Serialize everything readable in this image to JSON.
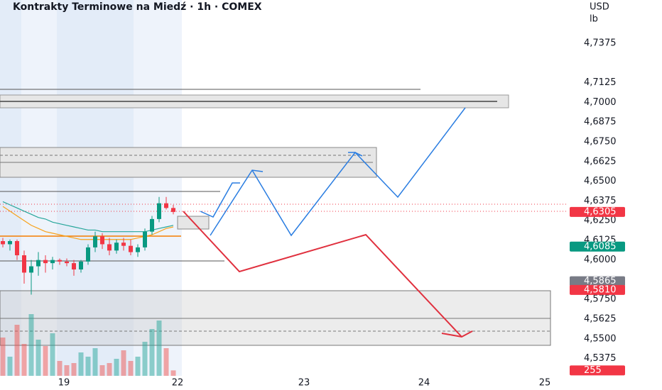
{
  "chart_data": {
    "type": "candlestick",
    "title": "Kontrakty Terminowe na Miedź · 1h · COMEX",
    "currency": "USD",
    "unit": "lb",
    "x_labels": [
      "19",
      "22",
      "23",
      "24",
      "25"
    ],
    "ylim": [
      4.522,
      4.765
    ],
    "yticks": [
      {
        "value": 4.7375,
        "label": "4,7375"
      },
      {
        "value": 4.7125,
        "label": "4,7125"
      },
      {
        "value": 4.7,
        "label": "4,7000"
      },
      {
        "value": 4.6875,
        "label": "4,6875"
      },
      {
        "value": 4.675,
        "label": "4,6750"
      },
      {
        "value": 4.6625,
        "label": "4,6625"
      },
      {
        "value": 4.65,
        "label": "4,6500"
      },
      {
        "value": 4.6375,
        "label": "4,6375"
      },
      {
        "value": 4.625,
        "label": "4,6250"
      },
      {
        "value": 4.6125,
        "label": "4,6125"
      },
      {
        "value": 4.6,
        "label": "4,6000"
      },
      {
        "value": 4.575,
        "label": "4,5750"
      },
      {
        "value": 4.5625,
        "label": "4,5625"
      },
      {
        "value": 4.55,
        "label": "4,5500"
      },
      {
        "value": 4.5375,
        "label": "4,5375"
      }
    ],
    "price_labels": [
      {
        "value": 4.6305,
        "label": "4,6305",
        "color": "#f23645"
      },
      {
        "value": 4.6085,
        "label": "4,6085",
        "color": "#089981"
      },
      {
        "value": 4.5865,
        "label": "4,5865",
        "color": "#787b86"
      },
      {
        "value": 4.581,
        "label": "4,5810",
        "color": "#f23645"
      }
    ],
    "up_color": "#089981",
    "down_color": "#f23645",
    "candles": [
      {
        "o": 4.612,
        "h": 4.614,
        "l": 4.608,
        "c": 4.61
      },
      {
        "o": 4.61,
        "h": 4.613,
        "l": 4.606,
        "c": 4.612
      },
      {
        "o": 4.612,
        "h": 4.613,
        "l": 4.6,
        "c": 4.603
      },
      {
        "o": 4.603,
        "h": 4.606,
        "l": 4.585,
        "c": 4.592
      },
      {
        "o": 4.592,
        "h": 4.6,
        "l": 4.578,
        "c": 4.596
      },
      {
        "o": 4.596,
        "h": 4.605,
        "l": 4.59,
        "c": 4.6
      },
      {
        "o": 4.6,
        "h": 4.603,
        "l": 4.592,
        "c": 4.598
      },
      {
        "o": 4.598,
        "h": 4.602,
        "l": 4.594,
        "c": 4.6
      },
      {
        "o": 4.6,
        "h": 4.601,
        "l": 4.597,
        "c": 4.599
      },
      {
        "o": 4.599,
        "h": 4.601,
        "l": 4.596,
        "c": 4.598
      },
      {
        "o": 4.598,
        "h": 4.6,
        "l": 4.59,
        "c": 4.594
      },
      {
        "o": 4.594,
        "h": 4.6,
        "l": 4.592,
        "c": 4.599
      },
      {
        "o": 4.599,
        "h": 4.61,
        "l": 4.597,
        "c": 4.608
      },
      {
        "o": 4.608,
        "h": 4.618,
        "l": 4.605,
        "c": 4.615
      },
      {
        "o": 4.615,
        "h": 4.617,
        "l": 4.607,
        "c": 4.61
      },
      {
        "o": 4.61,
        "h": 4.614,
        "l": 4.603,
        "c": 4.606
      },
      {
        "o": 4.606,
        "h": 4.613,
        "l": 4.604,
        "c": 4.611
      },
      {
        "o": 4.611,
        "h": 4.614,
        "l": 4.606,
        "c": 4.609
      },
      {
        "o": 4.609,
        "h": 4.613,
        "l": 4.603,
        "c": 4.605
      },
      {
        "o": 4.605,
        "h": 4.61,
        "l": 4.602,
        "c": 4.608
      },
      {
        "o": 4.608,
        "h": 4.62,
        "l": 4.606,
        "c": 4.618
      },
      {
        "o": 4.618,
        "h": 4.628,
        "l": 4.616,
        "c": 4.626
      },
      {
        "o": 4.626,
        "h": 4.64,
        "l": 4.624,
        "c": 4.636
      },
      {
        "o": 4.636,
        "h": 4.64,
        "l": 4.632,
        "c": 4.633
      },
      {
        "o": 4.633,
        "h": 4.635,
        "l": 4.629,
        "c": 4.6305
      }
    ],
    "ma_series": [
      {
        "color": "#26a69a",
        "values": [
          4.637,
          4.635,
          4.633,
          4.631,
          4.629,
          4.627,
          4.626,
          4.624,
          4.623,
          4.622,
          4.621,
          4.62,
          4.619,
          4.619,
          4.618,
          4.618,
          4.618,
          4.618,
          4.618,
          4.618,
          4.618,
          4.619,
          4.62,
          4.621,
          4.622
        ]
      },
      {
        "color": "#f7a21b",
        "values": [
          4.634,
          4.631,
          4.628,
          4.625,
          4.622,
          4.62,
          4.618,
          4.617,
          4.616,
          4.615,
          4.614,
          4.613,
          4.613,
          4.613,
          4.613,
          4.613,
          4.613,
          4.613,
          4.613,
          4.614,
          4.615,
          4.616,
          4.618,
          4.62,
          4.621
        ]
      }
    ],
    "volume_ylim": [
      0,
      3000
    ],
    "volumes": [
      1800,
      900,
      2400,
      1500,
      2900,
      1700,
      1400,
      2000,
      700,
      500,
      600,
      1100,
      900,
      1300,
      500,
      600,
      800,
      1200,
      700,
      900,
      1600,
      2200,
      2600,
      1300,
      255
    ],
    "volume_label": {
      "value": 255,
      "label": "255"
    }
  }
}
